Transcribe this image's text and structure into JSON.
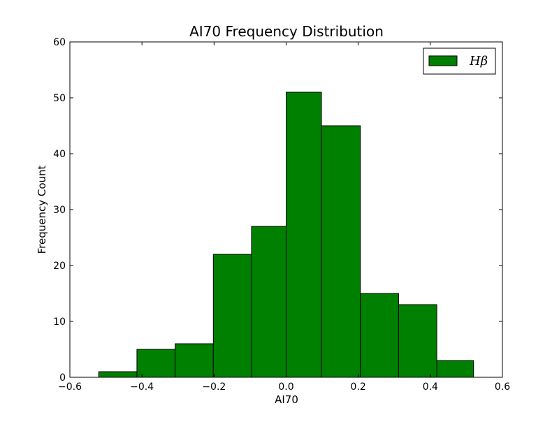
{
  "chart_data": {
    "type": "bar",
    "title": "AI70 Frequency Distribution",
    "xlabel": "AI70",
    "ylabel": "Frequency Count",
    "xlim": [
      -0.6,
      0.6
    ],
    "ylim": [
      0,
      60
    ],
    "x_ticks": [
      -0.6,
      -0.4,
      -0.2,
      0.0,
      0.2,
      0.4,
      0.6
    ],
    "x_tick_labels": [
      "−0.6",
      "−0.4",
      "−0.2",
      "0.0",
      "0.2",
      "0.4",
      "0.6"
    ],
    "y_ticks": [
      0,
      10,
      20,
      30,
      40,
      50,
      60
    ],
    "y_tick_labels": [
      "0",
      "10",
      "20",
      "30",
      "40",
      "50",
      "60"
    ],
    "grid": false,
    "legend_position": "top-right",
    "series": [
      {
        "name": "Hβ",
        "color": "#008000",
        "edge_color": "#000000",
        "bin_edges": [
          -0.52,
          -0.414,
          -0.308,
          -0.202,
          -0.096,
          0.0,
          0.098,
          0.206,
          0.312,
          0.418,
          0.52
        ],
        "values": [
          1,
          5,
          6,
          22,
          27,
          51,
          45,
          15,
          13,
          3
        ]
      }
    ]
  }
}
